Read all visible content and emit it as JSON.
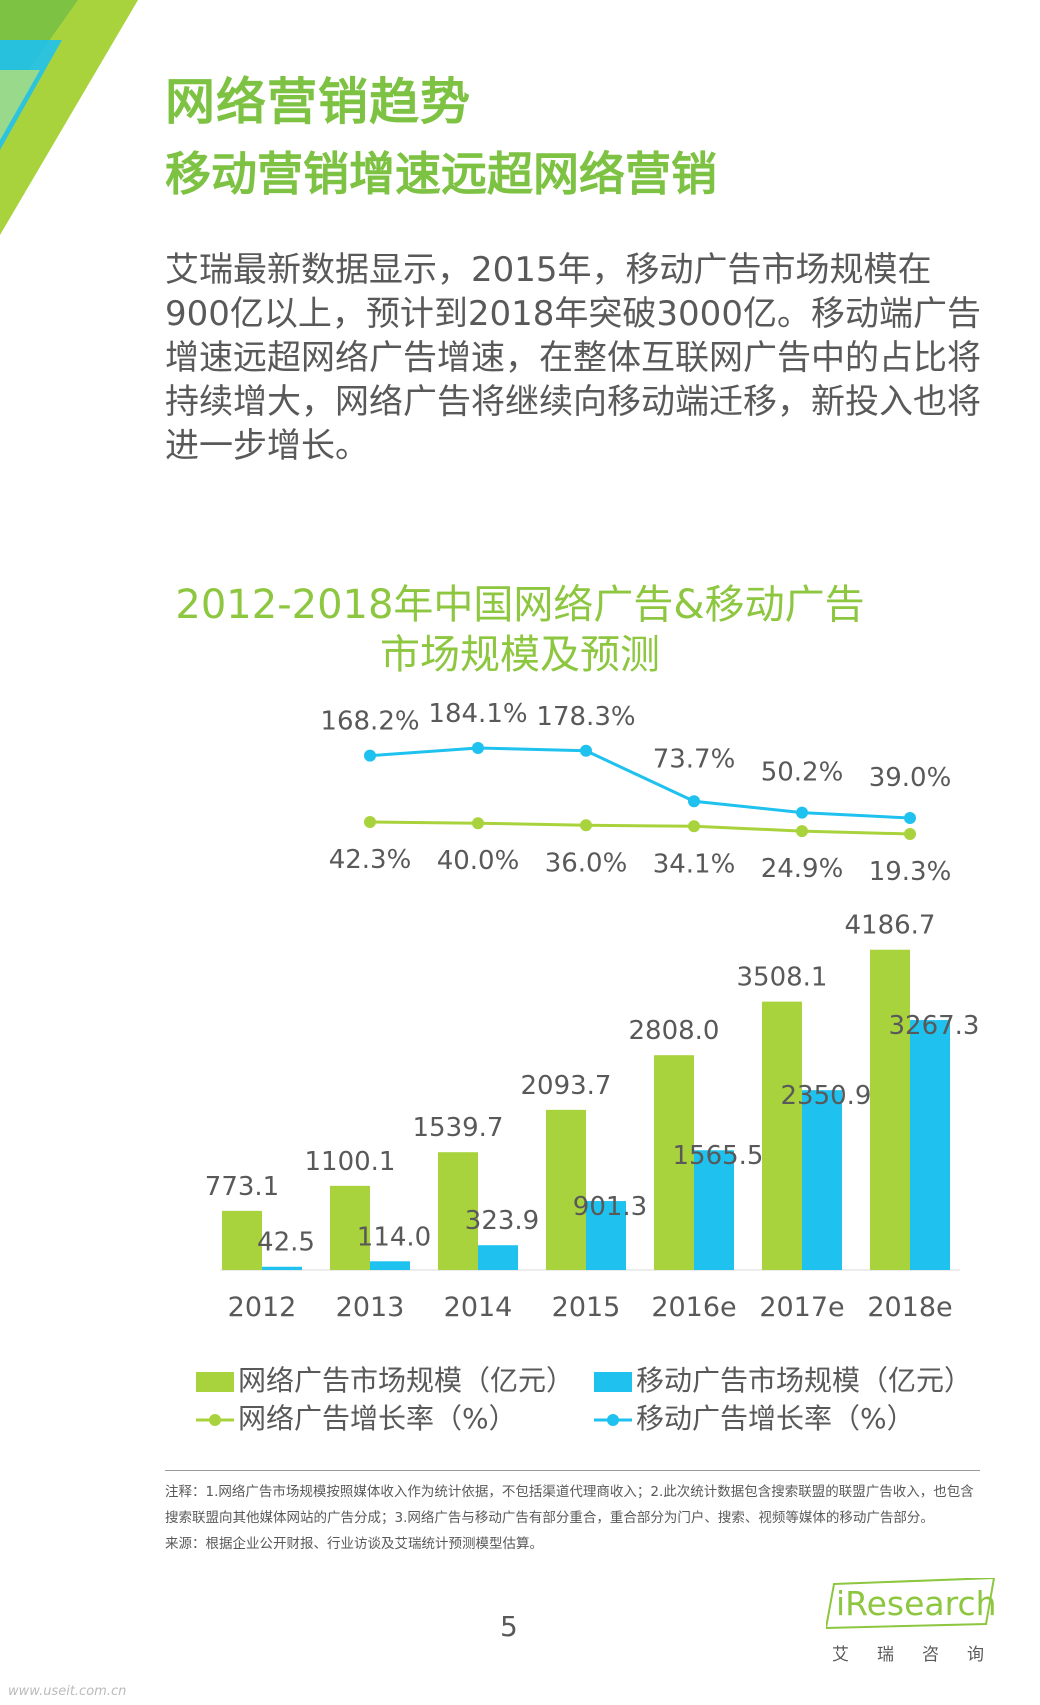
{
  "header": {
    "title": "网络营销趋势",
    "subtitle": "移动营销增速远超网络营销"
  },
  "body_text": "艾瑞最新数据显示，2015年，移动广告市场规模在900亿以上，预计到2018年突破3000亿。移动端广告增速远超网络广告增速，在整体互联网广告中的占比将持续增大，网络广告将继续向移动端迁移，新投入也将进一步增长。",
  "chart_title_line1": "2012-2018年中国网络广告&移动广告",
  "chart_title_line2": "市场规模及预测",
  "colors": {
    "green": "#a9d33c",
    "blue": "#1fc1ee",
    "title_green": "#8dc63f",
    "text": "#595959"
  },
  "chart_data": {
    "type": "bar",
    "title": "2012-2018年中国网络广告&移动广告市场规模及预测",
    "categories": [
      "2012",
      "2013",
      "2014",
      "2015",
      "2016e",
      "2017e",
      "2018e"
    ],
    "bar_series": [
      {
        "name": "网络广告市场规模（亿元）",
        "color": "#a9d33c",
        "values": [
          773.1,
          1100.1,
          1539.7,
          2093.7,
          2808.0,
          3508.1,
          4186.7
        ],
        "labels": [
          "773.1",
          "1100.1",
          "1539.7",
          "2093.7",
          "2808.0",
          "3508.1",
          "4186.7"
        ]
      },
      {
        "name": "移动广告市场规模（亿元）",
        "color": "#1fc1ee",
        "values": [
          42.5,
          114.0,
          323.9,
          901.3,
          1565.5,
          2350.9,
          3267.3
        ],
        "labels": [
          "42.5",
          "114.0",
          "323.9",
          "901.3",
          "1565.5",
          "2350.9",
          "3267.3"
        ]
      }
    ],
    "line_series": [
      {
        "name": "网络广告增长率（%）",
        "color": "#a9d33c",
        "values": [
          42.3,
          40.0,
          36.0,
          34.1,
          24.9,
          19.3
        ],
        "labels": [
          "42.3%",
          "40.0%",
          "36.0%",
          "34.1%",
          "24.9%",
          "19.3%"
        ]
      },
      {
        "name": "移动广告增长率（%）",
        "color": "#1fc1ee",
        "values": [
          168.2,
          184.1,
          178.3,
          73.7,
          50.2,
          39.0
        ],
        "labels": [
          "168.2%",
          "184.1%",
          "178.3%",
          "73.7%",
          "50.2%",
          "39.0%"
        ]
      }
    ],
    "line_points_at_categories": [
      "2013",
      "2014",
      "2015",
      "2016e",
      "2017e",
      "2018e"
    ],
    "ylim_bars": [
      0,
      4500
    ],
    "legend": [
      {
        "label": "网络广告市场规模（亿元）",
        "kind": "bar",
        "color": "#a9d33c"
      },
      {
        "label": "移动广告市场规模（亿元）",
        "kind": "bar",
        "color": "#1fc1ee"
      },
      {
        "label": "网络广告增长率（%）",
        "kind": "line",
        "color": "#a9d33c"
      },
      {
        "label": "移动广告增长率（%）",
        "kind": "line",
        "color": "#1fc1ee"
      }
    ]
  },
  "notes": {
    "note": "注释：1.网络广告市场规模按照媒体收入作为统计依据，不包括渠道代理商收入；2.此次统计数据包含搜索联盟的联盟广告收入，也包含搜索联盟向其他媒体网站的广告分成；3.网络广告与移动广告有部分重合，重合部分为门户、搜索、视频等媒体的移动广告部分。",
    "source": "来源：根据企业公开财报、行业访谈及艾瑞统计预测模型估算。"
  },
  "page_number": "5",
  "logo": {
    "word": "iResearch",
    "cn": "艾瑞咨询"
  },
  "watermark": "www.useit.com.cn"
}
